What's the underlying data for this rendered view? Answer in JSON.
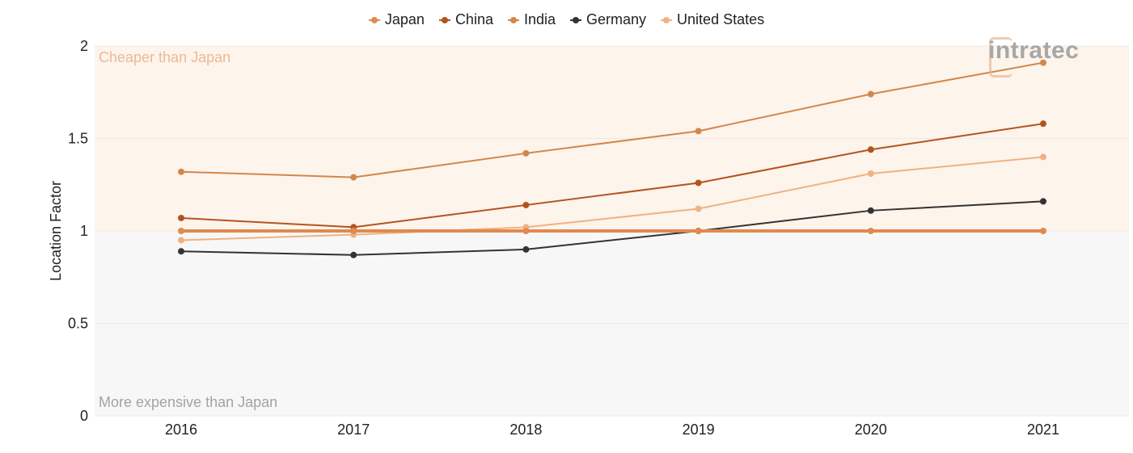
{
  "legend": {
    "items": [
      {
        "name": "Japan",
        "color": "#e08a4e"
      },
      {
        "name": "China",
        "color": "#b3541e"
      },
      {
        "name": "India",
        "color": "#d2874a"
      },
      {
        "name": "Germany",
        "color": "#333333"
      },
      {
        "name": "United States",
        "color": "#f0b183"
      }
    ]
  },
  "logo": {
    "text": "intratec"
  },
  "chart_data": {
    "type": "line",
    "x": [
      "2016",
      "2017",
      "2018",
      "2019",
      "2020",
      "2021"
    ],
    "ylabel": "Location Factor",
    "xlabel": "",
    "ylim": [
      0,
      2
    ],
    "yticks": [
      "0",
      "0.5",
      "1",
      "1.5",
      "2"
    ],
    "grid": true,
    "legend_position": "top-center",
    "annotations": {
      "upper": "Cheaper than Japan",
      "lower": "More expensive than Japan"
    },
    "regions": {
      "upper_color": "#fdf4ec",
      "lower_color": "#f7f7f7"
    },
    "series": [
      {
        "name": "Japan",
        "values": [
          1,
          1,
          1,
          1,
          1,
          1
        ],
        "color": "#e08a4e"
      },
      {
        "name": "China",
        "values": [
          1.07,
          1.02,
          1.14,
          1.26,
          1.44,
          1.58
        ],
        "color": "#b3541e"
      },
      {
        "name": "India",
        "values": [
          1.32,
          1.29,
          1.42,
          1.54,
          1.74,
          1.91
        ],
        "color": "#d2874a"
      },
      {
        "name": "Germany",
        "values": [
          0.89,
          0.87,
          0.9,
          1,
          1.11,
          1.16
        ],
        "color": "#333333"
      },
      {
        "name": "United States",
        "values": [
          0.95,
          0.98,
          1.02,
          1.12,
          1.31,
          1.4
        ],
        "color": "#f0b183"
      }
    ]
  }
}
